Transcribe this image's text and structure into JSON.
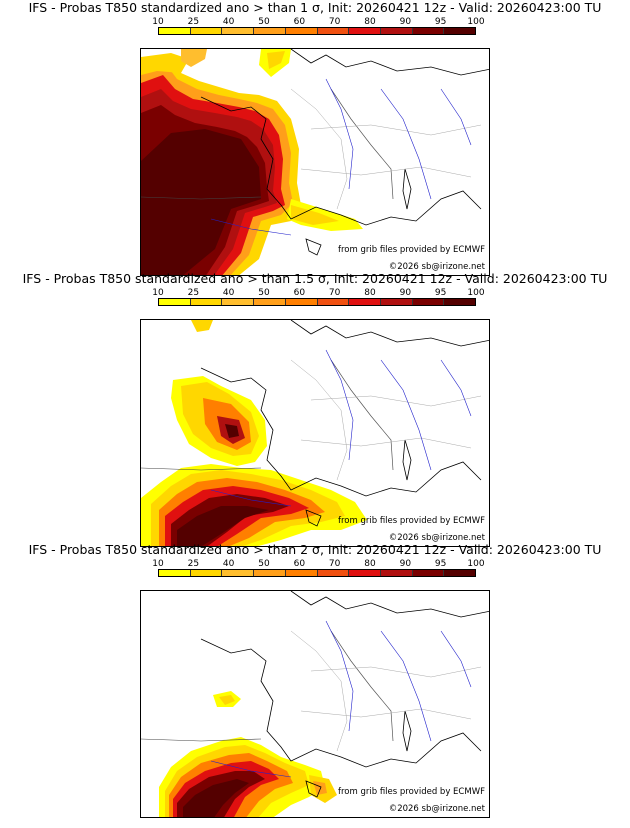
{
  "legend": {
    "ticks": [
      "10",
      "25",
      "40",
      "50",
      "60",
      "70",
      "80",
      "90",
      "95",
      "100"
    ],
    "colors": [
      "#ffff00",
      "#ffd700",
      "#ffbe2e",
      "#ff9f1a",
      "#ff7f00",
      "#f05010",
      "#e01010",
      "#b01010",
      "#7a0000",
      "#540000"
    ]
  },
  "panels": [
    {
      "title": "IFS - Probas T850  standardized ano > than 1 σ, Init: 20260421 12z - Valid: 20260423:00 TU",
      "credit_grib": "from grib files provided by ECMWF",
      "credit_copyright": "©2026 sb@irizone.net"
    },
    {
      "title": "IFS - Probas T850  standardized ano > than 1.5 σ, Init: 20260421 12z - Valid: 20260423:00 TU",
      "credit_grib": "from grib files provided by ECMWF",
      "credit_copyright": "©2026 sb@irizone.net"
    },
    {
      "title": "IFS - Probas T850  standardized ano > than 2 σ, Init: 20260421 12z - Valid: 20260423:00 TU",
      "credit_grib": "from grib files provided by ECMWF",
      "credit_copyright": "©2026 sb@irizone.net"
    }
  ],
  "map_colors": {
    "coast": "#000000",
    "borders": "#555555",
    "admin": "#aaaaaa",
    "rivers": "#2222cc"
  }
}
